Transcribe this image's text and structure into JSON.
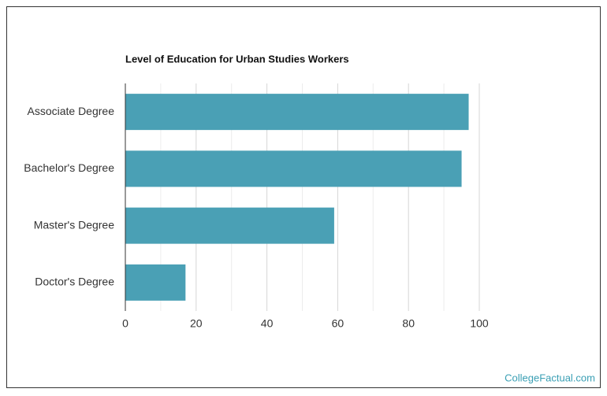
{
  "chart_data": {
    "type": "bar",
    "orientation": "horizontal",
    "title": "Level of Education for Urban Studies Workers",
    "categories": [
      "Associate Degree",
      "Bachelor's Degree",
      "Master's Degree",
      "Doctor's Degree"
    ],
    "values": [
      97,
      95,
      59,
      17
    ],
    "color": "#4aa0b5",
    "xlim": [
      0,
      100
    ],
    "xticks": [
      0,
      20,
      40,
      60,
      80,
      100
    ],
    "minor_xticks": [
      10,
      30,
      50,
      70,
      90
    ],
    "grid": true
  },
  "footer": "CollegeFactual.com"
}
